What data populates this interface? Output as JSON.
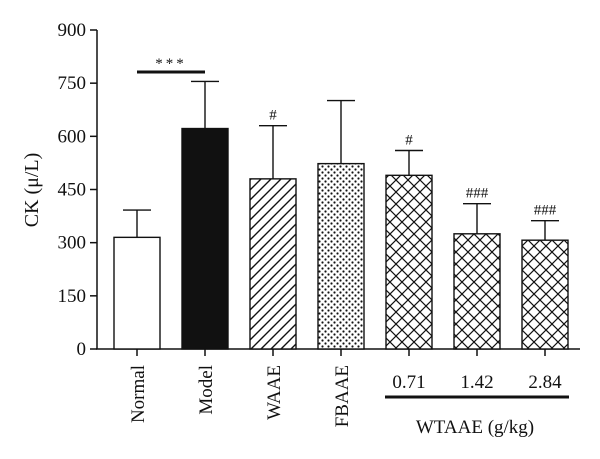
{
  "chart_data": {
    "type": "bar",
    "ylabel": "CK (μ/L)",
    "ylim": [
      0,
      900
    ],
    "yticks": [
      0,
      150,
      300,
      450,
      600,
      750,
      900
    ],
    "grid": false,
    "categories": [
      "Normal",
      "Model",
      "WAAE",
      "FBAAE",
      "0.71",
      "1.42",
      "2.84"
    ],
    "values": [
      315,
      622,
      480,
      523,
      490,
      325,
      307
    ],
    "errors": [
      77,
      133,
      150,
      178,
      70,
      85,
      55
    ],
    "fills": [
      "white",
      "black",
      "diagonal",
      "dotted",
      "crosshatch",
      "crosshatch",
      "crosshatch"
    ],
    "significance": [
      "",
      "",
      "#",
      "",
      "#",
      "###",
      "###"
    ],
    "comparison": {
      "from": "Normal",
      "to": "Model",
      "label": "***"
    },
    "group": {
      "label": "WTAAE (g/kg)",
      "members": [
        "0.71",
        "1.42",
        "2.84"
      ]
    }
  }
}
